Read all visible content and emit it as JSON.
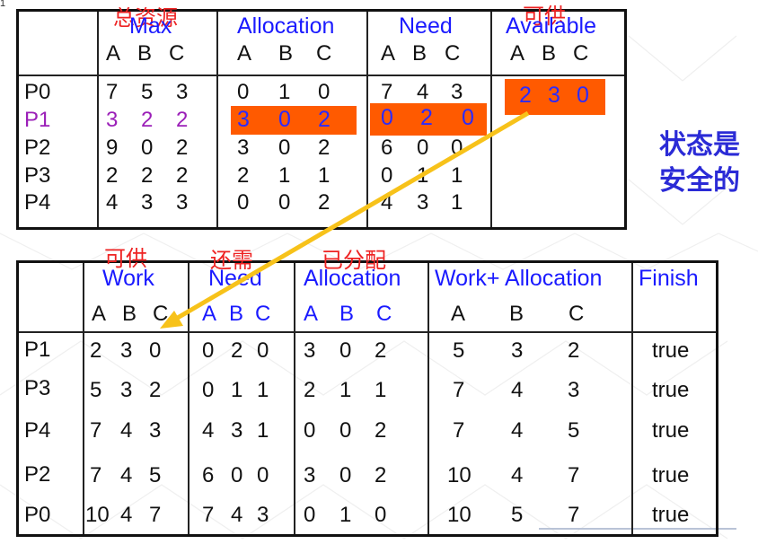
{
  "page_number": "1",
  "top_table": {
    "annotations": {
      "max": "总资源",
      "available": "可供"
    },
    "headers": [
      "Max",
      "Allocation",
      "Need",
      "Available"
    ],
    "subheaders": [
      "A",
      "B",
      "C"
    ],
    "processes": [
      "P0",
      "P1",
      "P2",
      "P3",
      "P4"
    ],
    "max": [
      [
        "7",
        "5",
        "3"
      ],
      [
        "3",
        "2",
        "2"
      ],
      [
        "9",
        "0",
        "2"
      ],
      [
        "2",
        "2",
        "2"
      ],
      [
        "4",
        "3",
        "3"
      ]
    ],
    "allocation": [
      [
        "0",
        "1",
        "0"
      ],
      [
        "3",
        "0",
        "2"
      ],
      [
        "3",
        "0",
        "2"
      ],
      [
        "2",
        "1",
        "1"
      ],
      [
        "0",
        "0",
        "2"
      ]
    ],
    "need": [
      [
        "7",
        "4",
        "3"
      ],
      [
        "0",
        "2",
        "0"
      ],
      [
        "6",
        "0",
        "0"
      ],
      [
        "0",
        "1",
        "1"
      ],
      [
        "4",
        "3",
        "1"
      ]
    ],
    "available": [
      "2",
      "3",
      "0"
    ]
  },
  "verdict": [
    "状态是",
    "安全的"
  ],
  "bottom_table": {
    "annotations": {
      "work": "可供",
      "need": "还需",
      "allocation": "已分配"
    },
    "headers": [
      "Work",
      "Need",
      "Allocation",
      "Work+ Allocation",
      "Finish"
    ],
    "subheaders": [
      "A",
      "B",
      "C"
    ],
    "rows": [
      {
        "p": "P1",
        "work": [
          "2",
          "3",
          "0"
        ],
        "need": [
          "0",
          "2",
          "0"
        ],
        "alloc": [
          "3",
          "0",
          "2"
        ],
        "wa": [
          "5",
          "3",
          "2"
        ],
        "finish": "true"
      },
      {
        "p": "P3",
        "work": [
          "5",
          "3",
          "2"
        ],
        "need": [
          "0",
          "1",
          "1"
        ],
        "alloc": [
          "2",
          "1",
          "1"
        ],
        "wa": [
          "7",
          "4",
          "3"
        ],
        "finish": "true"
      },
      {
        "p": "P4",
        "work": [
          "7",
          "4",
          "3"
        ],
        "need": [
          "4",
          "3",
          "1"
        ],
        "alloc": [
          "0",
          "0",
          "2"
        ],
        "wa": [
          "7",
          "4",
          "5"
        ],
        "finish": "true"
      },
      {
        "p": "P2",
        "work": [
          "7",
          "4",
          "5"
        ],
        "need": [
          "6",
          "0",
          "0"
        ],
        "alloc": [
          "3",
          "0",
          "2"
        ],
        "wa": [
          "10",
          "4",
          "7"
        ],
        "finish": "true"
      },
      {
        "p": "P0",
        "work": [
          "10",
          "4",
          "7"
        ],
        "need": [
          "7",
          "4",
          "3"
        ],
        "alloc": [
          "0",
          "1",
          "0"
        ],
        "wa": [
          "10",
          "5",
          "7"
        ],
        "finish": "true"
      }
    ]
  },
  "colors": {
    "highlight": "#ff5a00",
    "arrow": "#f7c21a",
    "header_blue": "#1a1aff",
    "p1_purple": "#9b1fb8"
  }
}
